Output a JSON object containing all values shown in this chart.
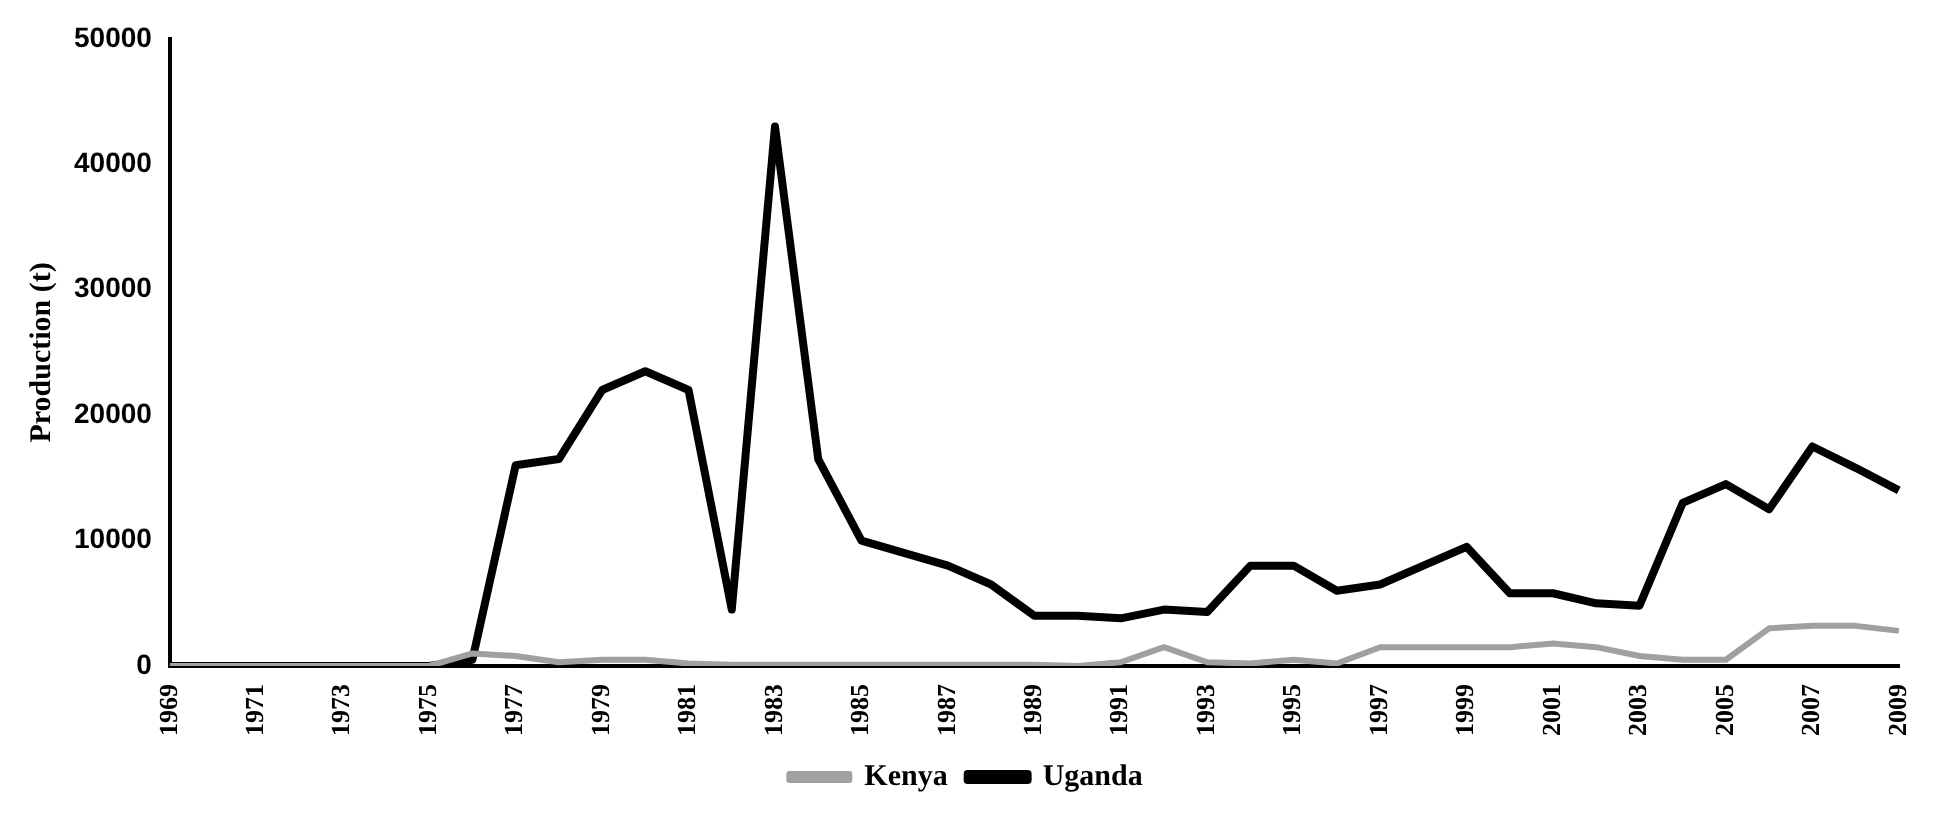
{
  "chart_data": {
    "type": "line",
    "ylabel": "Production (t)",
    "categories": [
      "1969",
      null,
      "1971",
      null,
      "1973",
      null,
      "1975",
      null,
      "1977",
      null,
      "1979",
      null,
      "1981",
      null,
      "1983",
      null,
      "1985",
      null,
      "1987",
      null,
      "1989",
      null,
      "1991",
      null,
      "1993",
      null,
      "1995",
      null,
      "1997",
      null,
      "1999",
      null,
      "2001",
      null,
      "2003",
      null,
      "2005",
      null,
      "2007",
      null,
      "2009"
    ],
    "series": [
      {
        "name": "Kenya",
        "color": "#a0a0a0",
        "values": [
          0,
          0,
          0,
          0,
          0,
          0,
          0,
          1000,
          800,
          300,
          500,
          500,
          200,
          100,
          100,
          100,
          100,
          100,
          100,
          100,
          100,
          0,
          300,
          1500,
          300,
          200,
          500,
          200,
          1500,
          1500,
          1500,
          1500,
          1800,
          1500,
          800,
          500,
          500,
          3000,
          3200,
          3200,
          2800
        ]
      },
      {
        "name": "Uganda",
        "color": "#000000",
        "values": [
          0,
          0,
          0,
          0,
          0,
          0,
          0,
          500,
          16000,
          16500,
          22000,
          23500,
          22000,
          4500,
          43000,
          16500,
          10000,
          9000,
          8000,
          6500,
          4000,
          4000,
          3800,
          4500,
          4300,
          8000,
          8000,
          6000,
          6500,
          8000,
          9500,
          5800,
          5800,
          5000,
          4800,
          13000,
          14500,
          12500,
          17500,
          15800,
          14000
        ]
      }
    ],
    "ylim": [
      0,
      50000
    ],
    "yticks": [
      0,
      10000,
      20000,
      30000,
      40000,
      50000
    ],
    "grid": false,
    "legend": "bottom",
    "marker": "none",
    "line_style": "solid"
  }
}
